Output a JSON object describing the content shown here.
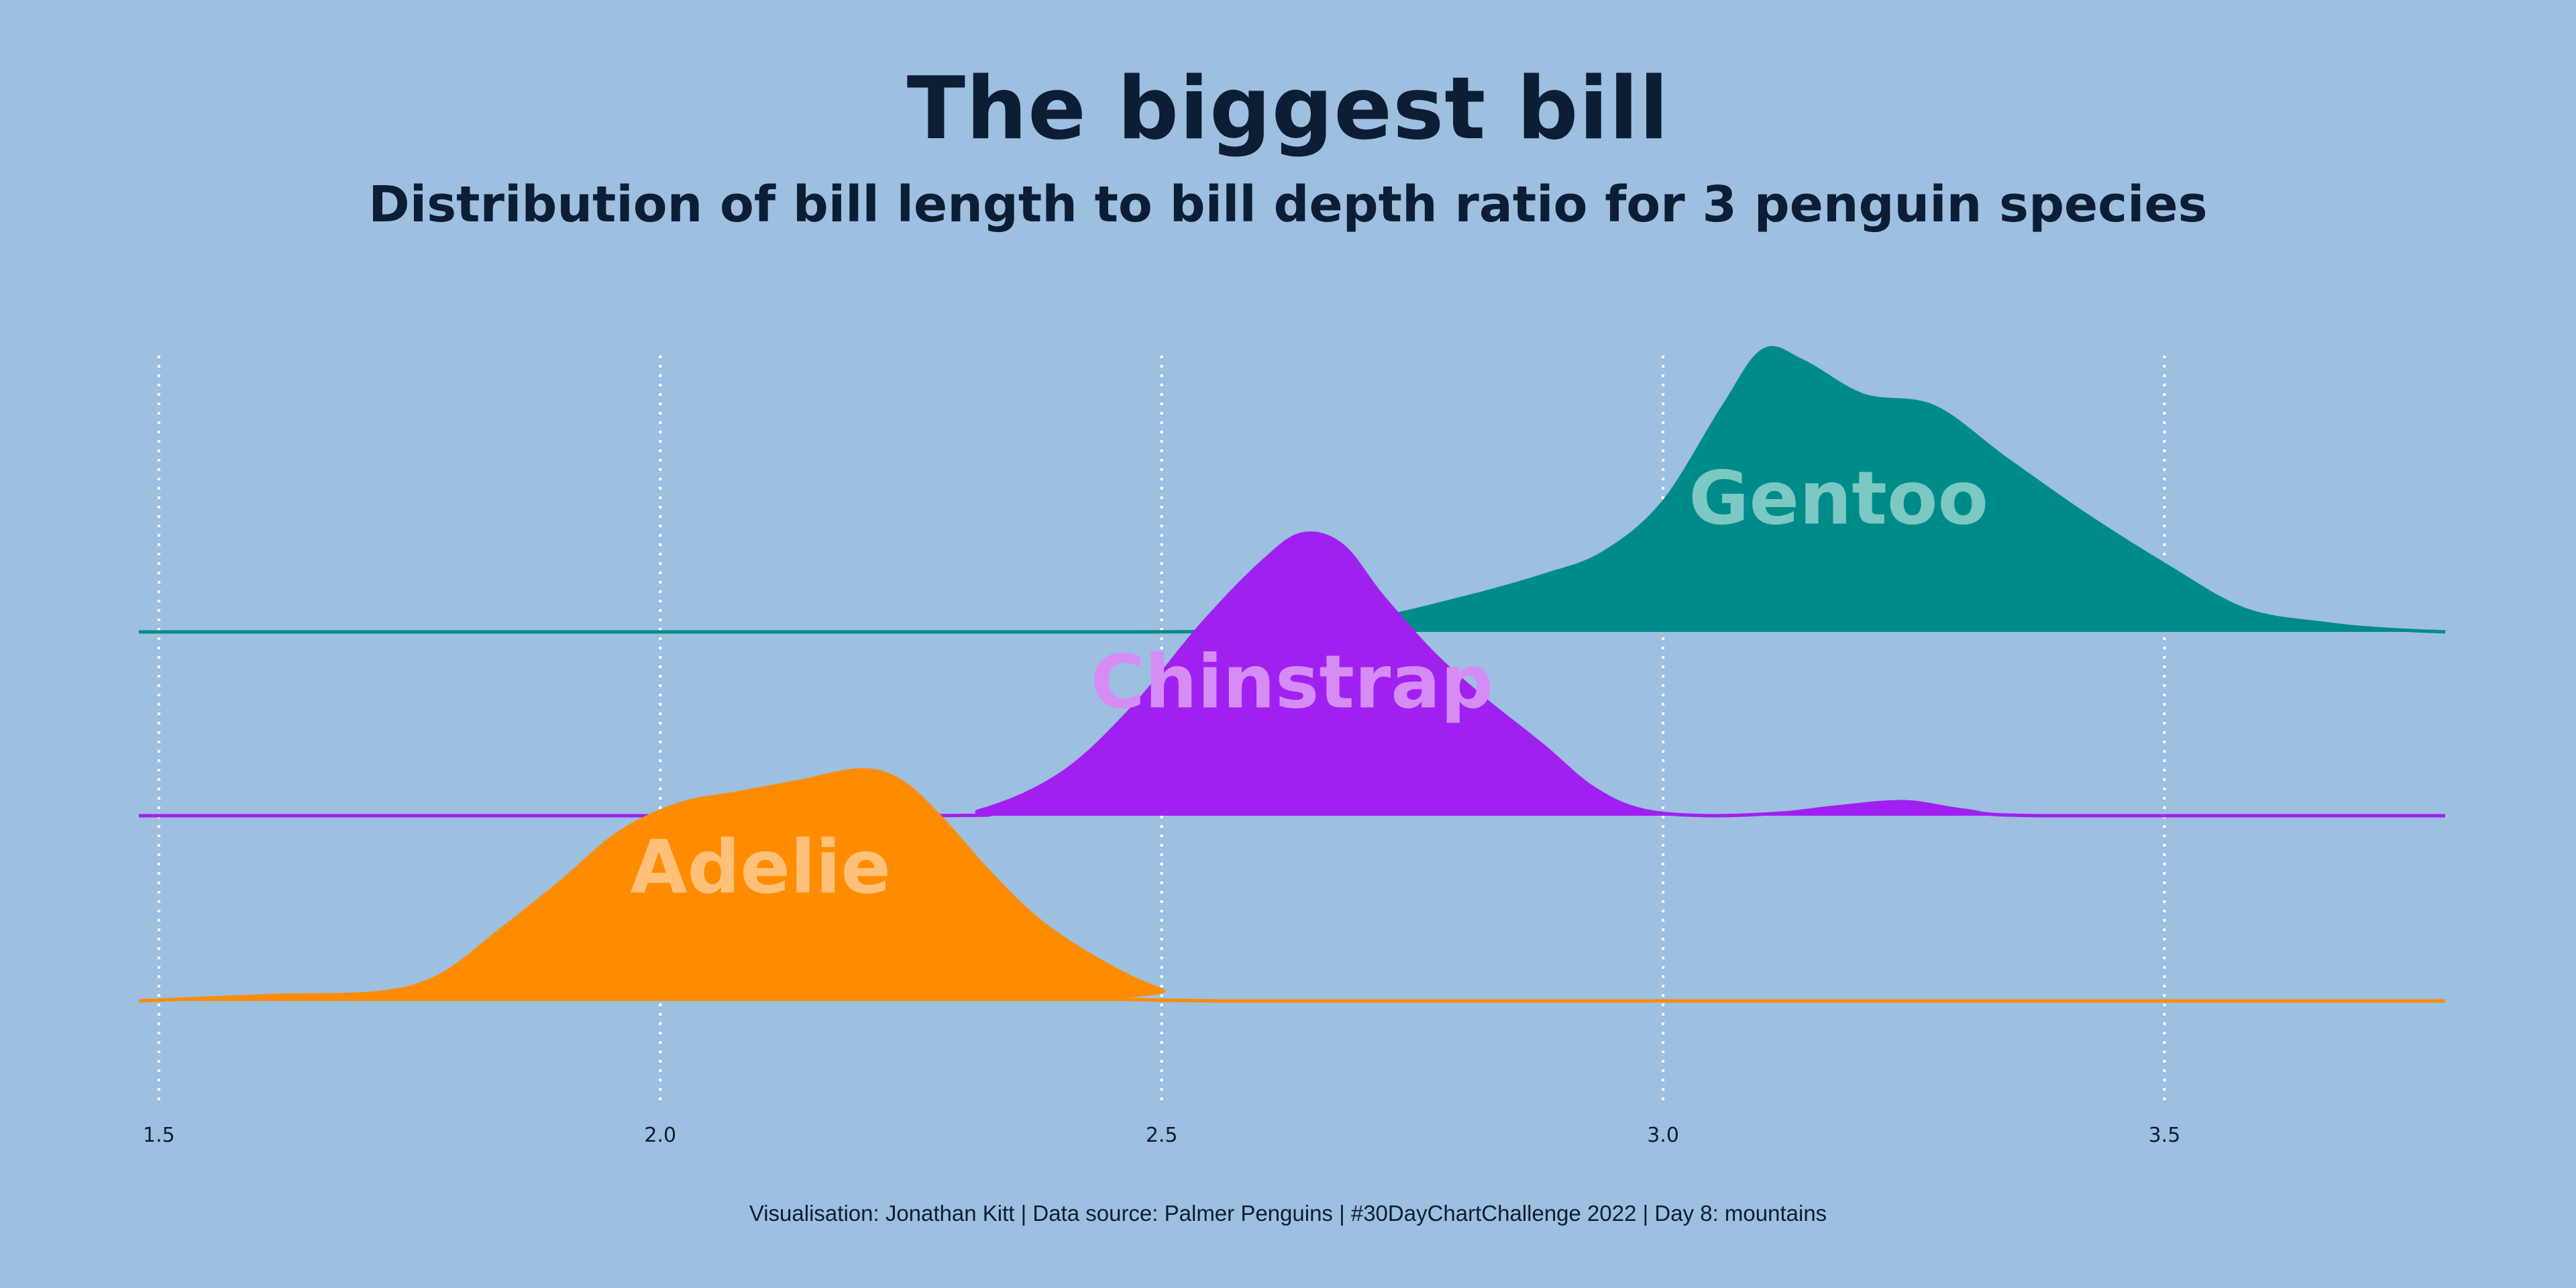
{
  "chart_data": {
    "type": "area",
    "subtype": "ridgeline-density",
    "title": "The biggest bill",
    "subtitle": "Distribution of bill length to bill depth ratio for 3 penguin species",
    "caption": "Visualisation: Jonathan Kitt | Data source: Palmer Penguins | #30DayChartChallenge 2022 | Day 8: mountains",
    "xlim": [
      1.48,
      3.78
    ],
    "x_ticks": [
      "1.5",
      "2.0",
      "2.5",
      "3.0",
      "3.5"
    ],
    "x_tick_values": [
      1.5,
      2.0,
      2.5,
      3.0,
      3.5
    ],
    "grid": "vertical-dotted",
    "series": [
      {
        "name": "Adelie",
        "color": "#ff8c00",
        "label_color": "#ffc07a",
        "label_x": 2.1,
        "label_density": 0.48,
        "points": [
          [
            1.48,
            0.0
          ],
          [
            1.55,
            0.01
          ],
          [
            1.62,
            0.02
          ],
          [
            1.72,
            0.03
          ],
          [
            1.78,
            0.09
          ],
          [
            1.84,
            0.25
          ],
          [
            1.9,
            0.42
          ],
          [
            1.96,
            0.6
          ],
          [
            2.02,
            0.7
          ],
          [
            2.08,
            0.74
          ],
          [
            2.14,
            0.78
          ],
          [
            2.2,
            0.82
          ],
          [
            2.24,
            0.78
          ],
          [
            2.28,
            0.65
          ],
          [
            2.33,
            0.45
          ],
          [
            2.38,
            0.28
          ],
          [
            2.44,
            0.14
          ],
          [
            2.5,
            0.04
          ],
          [
            2.56,
            0.0
          ],
          [
            3.78,
            0.0
          ]
        ]
      },
      {
        "name": "Chinstrap",
        "color": "#a020f0",
        "label_color": "#d68cf5",
        "label_x": 2.63,
        "label_density": 0.48,
        "points": [
          [
            1.48,
            0.0
          ],
          [
            2.25,
            0.0
          ],
          [
            2.32,
            0.02
          ],
          [
            2.4,
            0.15
          ],
          [
            2.47,
            0.38
          ],
          [
            2.54,
            0.68
          ],
          [
            2.6,
            0.9
          ],
          [
            2.64,
            1.0
          ],
          [
            2.68,
            0.96
          ],
          [
            2.72,
            0.78
          ],
          [
            2.77,
            0.58
          ],
          [
            2.82,
            0.42
          ],
          [
            2.88,
            0.25
          ],
          [
            2.93,
            0.1
          ],
          [
            2.98,
            0.02
          ],
          [
            3.05,
            0.0
          ],
          [
            3.12,
            0.01
          ],
          [
            3.17,
            0.03
          ],
          [
            3.24,
            0.05
          ],
          [
            3.3,
            0.02
          ],
          [
            3.38,
            0.0
          ],
          [
            3.78,
            0.0
          ]
        ]
      },
      {
        "name": "Gentoo",
        "color": "#008b8b",
        "label_color": "#7cc9c3",
        "label_x": 3.175,
        "label_density": 0.48,
        "points": [
          [
            1.48,
            0.0
          ],
          [
            2.45,
            0.0
          ],
          [
            2.6,
            0.01
          ],
          [
            2.7,
            0.04
          ],
          [
            2.8,
            0.12
          ],
          [
            2.88,
            0.2
          ],
          [
            2.94,
            0.28
          ],
          [
            3.0,
            0.46
          ],
          [
            3.06,
            0.8
          ],
          [
            3.1,
            1.0
          ],
          [
            3.14,
            0.96
          ],
          [
            3.2,
            0.84
          ],
          [
            3.27,
            0.8
          ],
          [
            3.34,
            0.62
          ],
          [
            3.42,
            0.42
          ],
          [
            3.5,
            0.24
          ],
          [
            3.58,
            0.08
          ],
          [
            3.66,
            0.03
          ],
          [
            3.72,
            0.01
          ],
          [
            3.78,
            0.0
          ]
        ]
      }
    ]
  }
}
